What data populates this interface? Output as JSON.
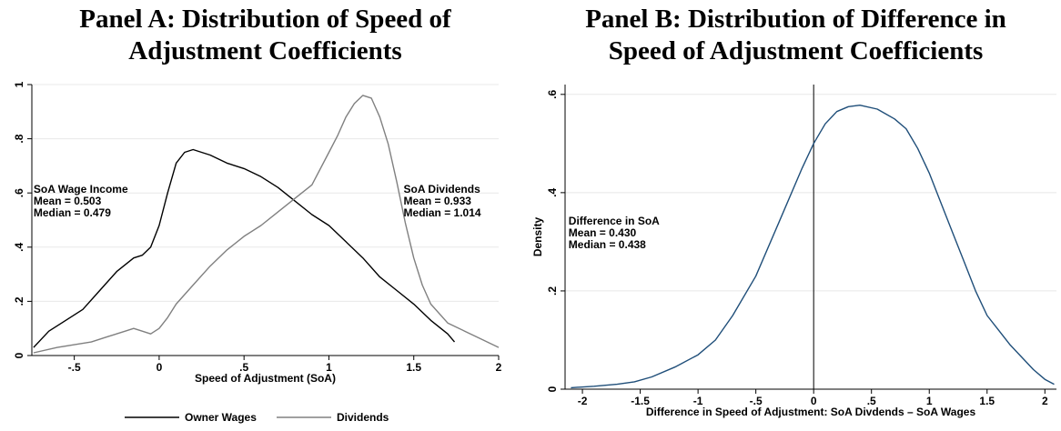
{
  "chart_data": [
    {
      "type": "line",
      "title_lines": [
        "Panel A: Distribution of Speed of",
        "Adjustment Coefficients"
      ],
      "xlabel": "Speed of Adjustment (SoA)",
      "ylabel": "",
      "xlim": [
        -0.75,
        2.0
      ],
      "ylim": [
        0,
        1.0
      ],
      "x_ticks": [
        {
          "v": -0.5,
          "label": "-.5"
        },
        {
          "v": 0,
          "label": "0"
        },
        {
          "v": 0.5,
          "label": ".5"
        },
        {
          "v": 1,
          "label": "1"
        },
        {
          "v": 1.5,
          "label": "1.5"
        },
        {
          "v": 2,
          "label": "2"
        }
      ],
      "y_ticks": [
        {
          "v": 0,
          "label": "0"
        },
        {
          "v": 0.2,
          "label": ".2"
        },
        {
          "v": 0.4,
          "label": ".4"
        },
        {
          "v": 0.6,
          "label": ".6"
        },
        {
          "v": 0.8,
          "label": ".8"
        },
        {
          "v": 1,
          "label": "1"
        }
      ],
      "grid": true,
      "legend_position": "bottom",
      "series": [
        {
          "name": "Owner Wages",
          "color": "#000000",
          "x": [
            -0.74,
            -0.65,
            -0.55,
            -0.45,
            -0.35,
            -0.25,
            -0.15,
            -0.1,
            -0.05,
            0.0,
            0.05,
            0.1,
            0.15,
            0.2,
            0.25,
            0.3,
            0.4,
            0.5,
            0.6,
            0.7,
            0.8,
            0.9,
            1.0,
            1.1,
            1.2,
            1.3,
            1.4,
            1.5,
            1.6,
            1.7,
            1.74
          ],
          "y": [
            0.03,
            0.09,
            0.13,
            0.17,
            0.24,
            0.31,
            0.36,
            0.37,
            0.4,
            0.48,
            0.6,
            0.71,
            0.75,
            0.76,
            0.75,
            0.74,
            0.71,
            0.69,
            0.66,
            0.62,
            0.57,
            0.52,
            0.48,
            0.42,
            0.36,
            0.29,
            0.24,
            0.19,
            0.13,
            0.08,
            0.05
          ]
        },
        {
          "name": "Dividends",
          "color": "#808080",
          "x": [
            -0.74,
            -0.6,
            -0.5,
            -0.4,
            -0.3,
            -0.2,
            -0.15,
            -0.1,
            -0.05,
            0.0,
            0.05,
            0.1,
            0.2,
            0.3,
            0.4,
            0.5,
            0.6,
            0.7,
            0.8,
            0.9,
            1.0,
            1.05,
            1.1,
            1.15,
            1.2,
            1.25,
            1.3,
            1.35,
            1.4,
            1.45,
            1.5,
            1.55,
            1.6,
            1.7,
            1.8,
            1.9,
            2.0
          ],
          "y": [
            0.01,
            0.03,
            0.04,
            0.05,
            0.07,
            0.09,
            0.1,
            0.09,
            0.08,
            0.1,
            0.14,
            0.19,
            0.26,
            0.33,
            0.39,
            0.44,
            0.48,
            0.53,
            0.58,
            0.63,
            0.75,
            0.81,
            0.88,
            0.93,
            0.96,
            0.95,
            0.88,
            0.78,
            0.64,
            0.49,
            0.36,
            0.26,
            0.19,
            0.12,
            0.09,
            0.06,
            0.03
          ]
        }
      ],
      "annotations": [
        {
          "lines": [
            "SoA Wage Income",
            "Mean = 0.503",
            "Median = 0.479"
          ],
          "anchor_x": -0.74,
          "anchor_y": 0.6,
          "align": "start"
        },
        {
          "lines": [
            "SoA Dividends",
            "Mean = 0.933",
            "Median = 1.014"
          ],
          "anchor_x": 1.44,
          "anchor_y": 0.6,
          "align": "start"
        }
      ]
    },
    {
      "type": "line",
      "title_lines": [
        "Panel B: Distribution of Difference in",
        "Speed of Adjustment Coefficients"
      ],
      "xlabel": "Difference in Speed of Adjustment: SoA Divdends – SoA Wages",
      "ylabel": "Density",
      "xlim": [
        -2.15,
        2.1
      ],
      "ylim": [
        0,
        0.62
      ],
      "x_ticks": [
        {
          "v": -2,
          "label": "-2"
        },
        {
          "v": -1.5,
          "label": "-1.5"
        },
        {
          "v": -1,
          "label": "-1"
        },
        {
          "v": -0.5,
          "label": "-.5"
        },
        {
          "v": 0,
          "label": "0"
        },
        {
          "v": 0.5,
          "label": ".5"
        },
        {
          "v": 1,
          "label": "1"
        },
        {
          "v": 1.5,
          "label": "1.5"
        },
        {
          "v": 2,
          "label": "2"
        }
      ],
      "y_ticks": [
        {
          "v": 0,
          "label": "0"
        },
        {
          "v": 0.2,
          "label": ".2"
        },
        {
          "v": 0.4,
          "label": ".4"
        },
        {
          "v": 0.6,
          "label": ".6"
        }
      ],
      "grid": true,
      "vline_x": 0,
      "series": [
        {
          "name": "",
          "color": "#1f4e79",
          "x": [
            -2.1,
            -1.9,
            -1.7,
            -1.55,
            -1.4,
            -1.2,
            -1.0,
            -0.85,
            -0.7,
            -0.5,
            -0.3,
            -0.1,
            0.0,
            0.1,
            0.2,
            0.3,
            0.4,
            0.55,
            0.7,
            0.8,
            0.9,
            1.0,
            1.1,
            1.2,
            1.3,
            1.4,
            1.5,
            1.6,
            1.7,
            1.8,
            1.9,
            2.0,
            2.08
          ],
          "y": [
            0.003,
            0.006,
            0.01,
            0.015,
            0.025,
            0.045,
            0.07,
            0.1,
            0.15,
            0.23,
            0.34,
            0.45,
            0.5,
            0.54,
            0.565,
            0.575,
            0.578,
            0.57,
            0.55,
            0.53,
            0.49,
            0.44,
            0.38,
            0.32,
            0.26,
            0.2,
            0.15,
            0.12,
            0.09,
            0.065,
            0.04,
            0.02,
            0.01
          ]
        }
      ],
      "annotations": [
        {
          "lines": [
            "Difference in SoA",
            "Mean = 0.430",
            "Median = 0.438"
          ],
          "anchor_x": -2.12,
          "anchor_y": 0.335,
          "align": "start"
        }
      ]
    }
  ]
}
